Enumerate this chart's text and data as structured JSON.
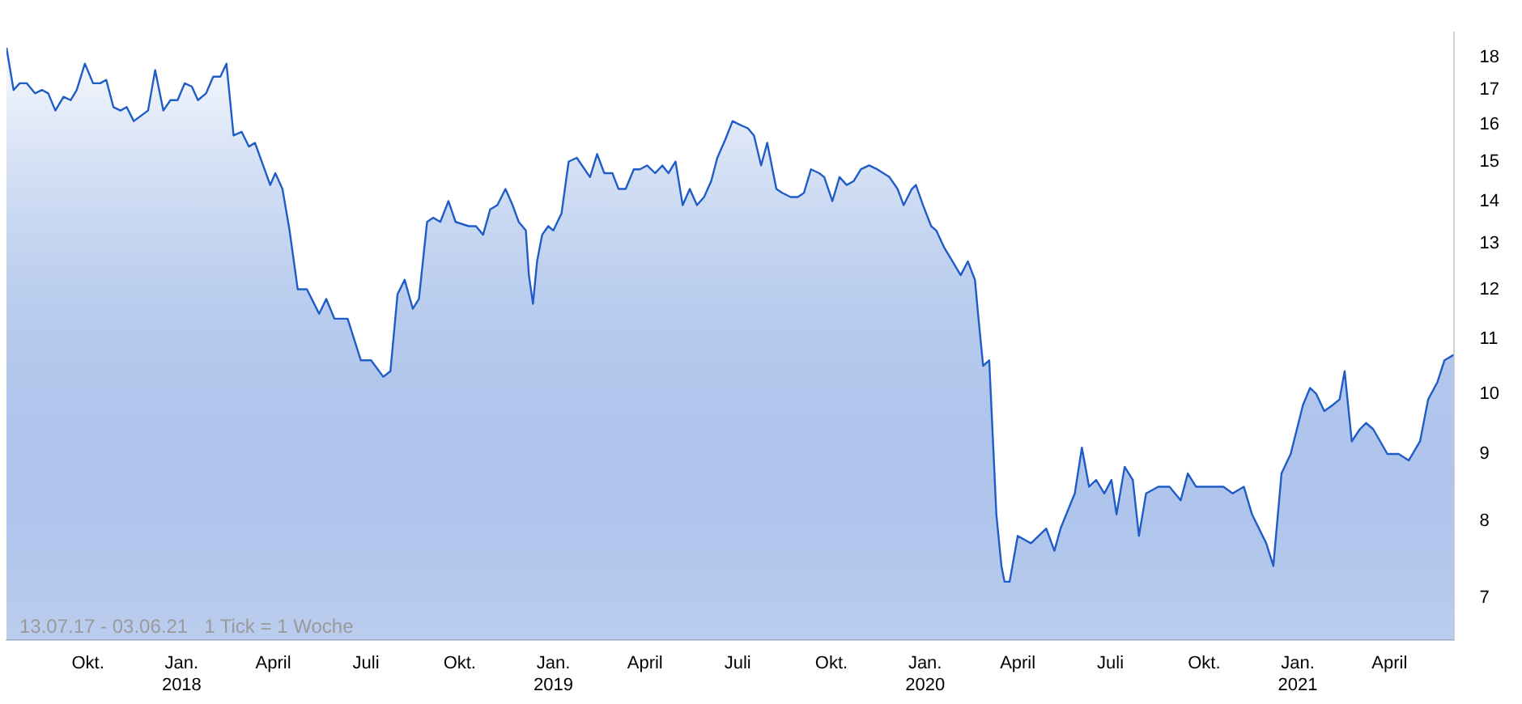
{
  "chart_data": {
    "type": "area",
    "log": "y",
    "grid": false,
    "legend": false,
    "annotations": [
      "13.07.17 - 03.06.21   1 Tick = 1 Woche"
    ],
    "xlim": [
      "2017-07-13",
      "2021-06-03"
    ],
    "ylim": [
      6.5,
      18.8
    ],
    "yticks": [
      7,
      8,
      9,
      10,
      11,
      12,
      13,
      14,
      15,
      16,
      17,
      18
    ],
    "xticks": [
      {
        "value": "2017-10-01",
        "label": "Okt."
      },
      {
        "value": "2018-01-01",
        "label": "Jan. 2018"
      },
      {
        "value": "2018-04-01",
        "label": "April"
      },
      {
        "value": "2018-07-01",
        "label": "Juli"
      },
      {
        "value": "2018-10-01",
        "label": "Okt."
      },
      {
        "value": "2019-01-01",
        "label": "Jan. 2019"
      },
      {
        "value": "2019-04-01",
        "label": "April"
      },
      {
        "value": "2019-07-01",
        "label": "Juli"
      },
      {
        "value": "2019-10-01",
        "label": "Okt."
      },
      {
        "value": "2020-01-01",
        "label": "Jan. 2020"
      },
      {
        "value": "2020-04-01",
        "label": "April"
      },
      {
        "value": "2020-07-01",
        "label": "Juli"
      },
      {
        "value": "2020-10-01",
        "label": "Okt."
      },
      {
        "value": "2021-01-01",
        "label": "Jan. 2021"
      },
      {
        "value": "2021-04-01",
        "label": "April"
      }
    ],
    "x": [
      "2017-07-13",
      "2017-07-20",
      "2017-07-26",
      "2017-08-02",
      "2017-08-10",
      "2017-08-17",
      "2017-08-23",
      "2017-08-30",
      "2017-09-07",
      "2017-09-14",
      "2017-09-20",
      "2017-09-28",
      "2017-10-06",
      "2017-10-13",
      "2017-10-19",
      "2017-10-26",
      "2017-11-02",
      "2017-11-08",
      "2017-11-15",
      "2017-11-29",
      "2017-12-06",
      "2017-12-14",
      "2017-12-21",
      "2017-12-28",
      "2018-01-04",
      "2018-01-11",
      "2018-01-17",
      "2018-01-25",
      "2018-02-01",
      "2018-02-08",
      "2018-02-14",
      "2018-02-21",
      "2018-03-01",
      "2018-03-08",
      "2018-03-14",
      "2018-03-22",
      "2018-03-29",
      "2018-04-03",
      "2018-04-10",
      "2018-04-17",
      "2018-04-25",
      "2018-05-04",
      "2018-05-16",
      "2018-05-23",
      "2018-05-31",
      "2018-06-13",
      "2018-06-26",
      "2018-07-06",
      "2018-07-18",
      "2018-07-25",
      "2018-08-01",
      "2018-08-08",
      "2018-08-16",
      "2018-08-22",
      "2018-08-30",
      "2018-09-05",
      "2018-09-12",
      "2018-09-20",
      "2018-09-27",
      "2018-10-10",
      "2018-10-17",
      "2018-10-24",
      "2018-10-31",
      "2018-11-07",
      "2018-11-15",
      "2018-11-22",
      "2018-11-28",
      "2018-12-05",
      "2018-12-08",
      "2018-12-12",
      "2018-12-16",
      "2018-12-21",
      "2018-12-27",
      "2019-01-01",
      "2019-01-09",
      "2019-01-16",
      "2019-01-24",
      "2019-02-06",
      "2019-02-13",
      "2019-02-20",
      "2019-02-28",
      "2019-03-06",
      "2019-03-13",
      "2019-03-21",
      "2019-03-27",
      "2019-04-03",
      "2019-04-11",
      "2019-04-18",
      "2019-04-24",
      "2019-05-01",
      "2019-05-08",
      "2019-05-15",
      "2019-05-22",
      "2019-05-29",
      "2019-06-05",
      "2019-06-11",
      "2019-06-19",
      "2019-06-26",
      "2019-07-03",
      "2019-07-11",
      "2019-07-17",
      "2019-07-24",
      "2019-07-30",
      "2019-08-08",
      "2019-08-14",
      "2019-08-22",
      "2019-08-29",
      "2019-09-04",
      "2019-09-11",
      "2019-09-19",
      "2019-09-24",
      "2019-10-02",
      "2019-10-09",
      "2019-10-16",
      "2019-10-23",
      "2019-10-30",
      "2019-11-07",
      "2019-11-15",
      "2019-11-27",
      "2019-12-05",
      "2019-12-11",
      "2019-12-19",
      "2019-12-23",
      "2019-12-30",
      "2020-01-07",
      "2020-01-12",
      "2020-01-20",
      "2020-01-28",
      "2020-02-05",
      "2020-02-12",
      "2020-02-19",
      "2020-02-22",
      "2020-02-27",
      "2020-03-04",
      "2020-03-08",
      "2020-03-11",
      "2020-03-16",
      "2020-03-19",
      "2020-03-24",
      "2020-04-01",
      "2020-04-14",
      "2020-04-29",
      "2020-05-07",
      "2020-05-13",
      "2020-05-27",
      "2020-06-03",
      "2020-06-10",
      "2020-06-17",
      "2020-06-25",
      "2020-07-02",
      "2020-07-07",
      "2020-07-15",
      "2020-07-23",
      "2020-07-29",
      "2020-08-05",
      "2020-08-17",
      "2020-08-28",
      "2020-09-08",
      "2020-09-15",
      "2020-09-23",
      "2020-10-14",
      "2020-10-20",
      "2020-10-29",
      "2020-11-09",
      "2020-11-17",
      "2020-12-01",
      "2020-12-08",
      "2020-12-16",
      "2020-12-25",
      "2021-01-06",
      "2021-01-13",
      "2021-01-19",
      "2021-01-27",
      "2021-02-04",
      "2021-02-11",
      "2021-02-16",
      "2021-02-23",
      "2021-03-03",
      "2021-03-09",
      "2021-03-16",
      "2021-03-30",
      "2021-04-10",
      "2021-04-20",
      "2021-05-01",
      "2021-05-09",
      "2021-05-18",
      "2021-05-25",
      "2021-06-03"
    ],
    "series": [
      {
        "color": "#1f5cc8",
        "values": [
          18.3,
          17.0,
          17.2,
          17.2,
          16.9,
          17.0,
          16.9,
          16.4,
          16.8,
          16.7,
          17.0,
          17.8,
          17.2,
          17.2,
          17.3,
          16.5,
          16.4,
          16.5,
          16.1,
          16.4,
          17.6,
          16.4,
          16.7,
          16.7,
          17.2,
          17.1,
          16.7,
          16.9,
          17.4,
          17.4,
          17.8,
          15.7,
          15.8,
          15.4,
          15.5,
          14.9,
          14.4,
          14.7,
          14.3,
          13.3,
          12.0,
          12.0,
          11.5,
          11.8,
          11.4,
          11.4,
          10.6,
          10.6,
          10.3,
          10.4,
          11.9,
          12.2,
          11.6,
          11.8,
          13.5,
          13.6,
          13.5,
          14.0,
          13.5,
          13.4,
          13.4,
          13.2,
          13.8,
          13.9,
          14.3,
          13.9,
          13.5,
          13.3,
          12.3,
          11.7,
          12.6,
          13.2,
          13.4,
          13.3,
          13.7,
          15.0,
          15.1,
          14.6,
          15.2,
          14.7,
          14.7,
          14.3,
          14.3,
          14.8,
          14.8,
          14.9,
          14.7,
          14.9,
          14.7,
          15.0,
          13.9,
          14.3,
          13.9,
          14.1,
          14.5,
          15.1,
          15.6,
          16.1,
          16.0,
          15.9,
          15.7,
          14.9,
          15.5,
          14.3,
          14.2,
          14.1,
          14.1,
          14.2,
          14.8,
          14.7,
          14.6,
          14.0,
          14.6,
          14.4,
          14.5,
          14.8,
          14.9,
          14.8,
          14.6,
          14.3,
          13.9,
          14.3,
          14.4,
          13.9,
          13.4,
          13.3,
          12.9,
          12.6,
          12.3,
          12.6,
          12.2,
          11.5,
          10.5,
          10.6,
          9.1,
          8.1,
          7.4,
          7.2,
          7.2,
          7.8,
          7.7,
          7.9,
          7.6,
          7.9,
          8.4,
          9.1,
          8.5,
          8.6,
          8.4,
          8.6,
          8.1,
          8.8,
          8.6,
          7.8,
          8.4,
          8.5,
          8.5,
          8.3,
          8.7,
          8.5,
          8.5,
          8.5,
          8.4,
          8.5,
          8.1,
          7.7,
          7.4,
          8.7,
          9.0,
          9.8,
          10.1,
          10.0,
          9.7,
          9.8,
          9.9,
          10.4,
          9.2,
          9.4,
          9.5,
          9.4,
          9.0,
          9.0,
          8.9,
          9.2,
          9.9,
          10.2,
          10.6,
          10.7
        ]
      }
    ]
  }
}
